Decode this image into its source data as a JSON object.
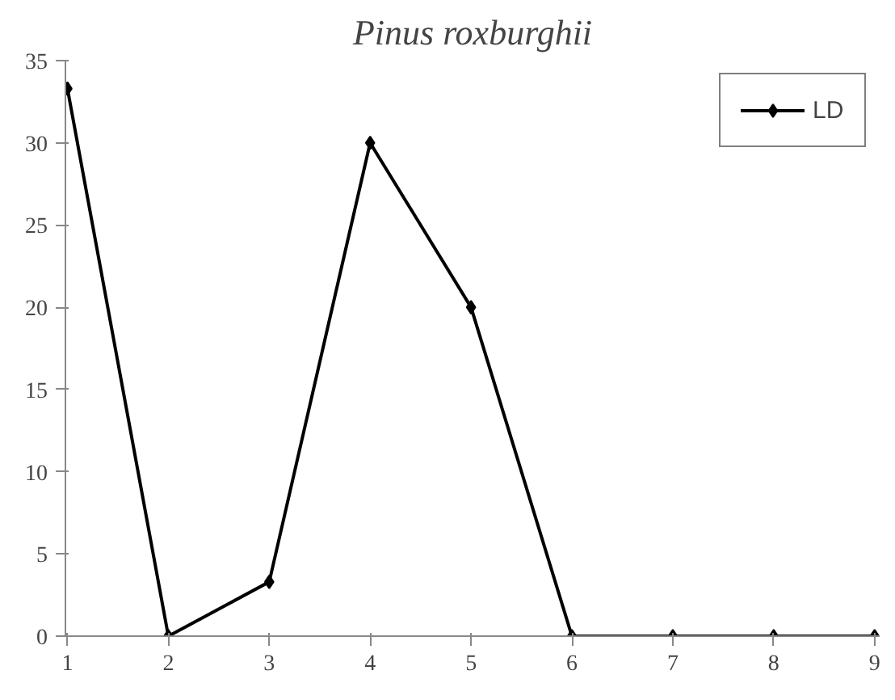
{
  "chart_data": {
    "type": "line",
    "title": "Pinus roxburghii",
    "categories": [
      "1",
      "2",
      "3",
      "4",
      "5",
      "6",
      "7",
      "8",
      "9"
    ],
    "series": [
      {
        "name": "LD",
        "color": "#000000",
        "values": [
          33.3,
          0,
          3.3,
          30,
          20,
          0,
          0,
          0,
          0
        ]
      }
    ],
    "ylim": [
      0,
      35
    ],
    "yticks": [
      0,
      5,
      10,
      15,
      20,
      25,
      30,
      35
    ],
    "grid": false,
    "legend": "top right",
    "marker": "diamond",
    "line_style": "solid"
  }
}
